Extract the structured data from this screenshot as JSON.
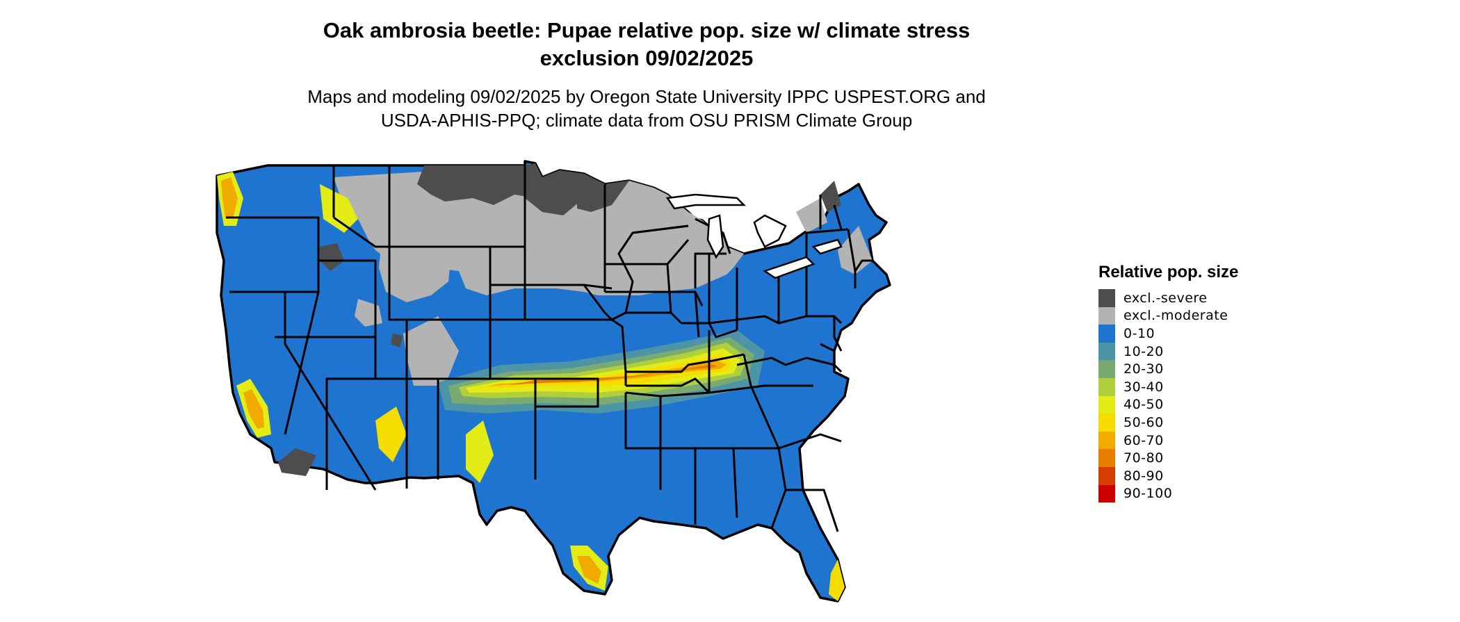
{
  "title_lines": [
    "Oak ambrosia beetle: Pupae relative pop. size w/ climate stress",
    "exclusion 09/02/2025"
  ],
  "subtitle_lines": [
    "Maps and modeling 09/02/2025 by Oregon State University IPPC USPEST.ORG and",
    "USDA-APHIS-PPQ; climate data from OSU PRISM Climate Group"
  ],
  "legend": {
    "title": "Relative pop. size",
    "items": [
      {
        "label": "excl.-severe",
        "color": "#4d4d4d"
      },
      {
        "label": "excl.-moderate",
        "color": "#b3b3b3"
      },
      {
        "label": "0-10",
        "color": "#1f74cf"
      },
      {
        "label": "10-20",
        "color": "#4d94a6"
      },
      {
        "label": "20-30",
        "color": "#78aa72"
      },
      {
        "label": "30-40",
        "color": "#b0cf3c"
      },
      {
        "label": "40-50",
        "color": "#e3ec14"
      },
      {
        "label": "50-60",
        "color": "#f5dd00"
      },
      {
        "label": "60-70",
        "color": "#f0aa00"
      },
      {
        "label": "70-80",
        "color": "#e87d00"
      },
      {
        "label": "80-90",
        "color": "#d63d00"
      },
      {
        "label": "90-100",
        "color": "#cc0000"
      }
    ]
  }
}
